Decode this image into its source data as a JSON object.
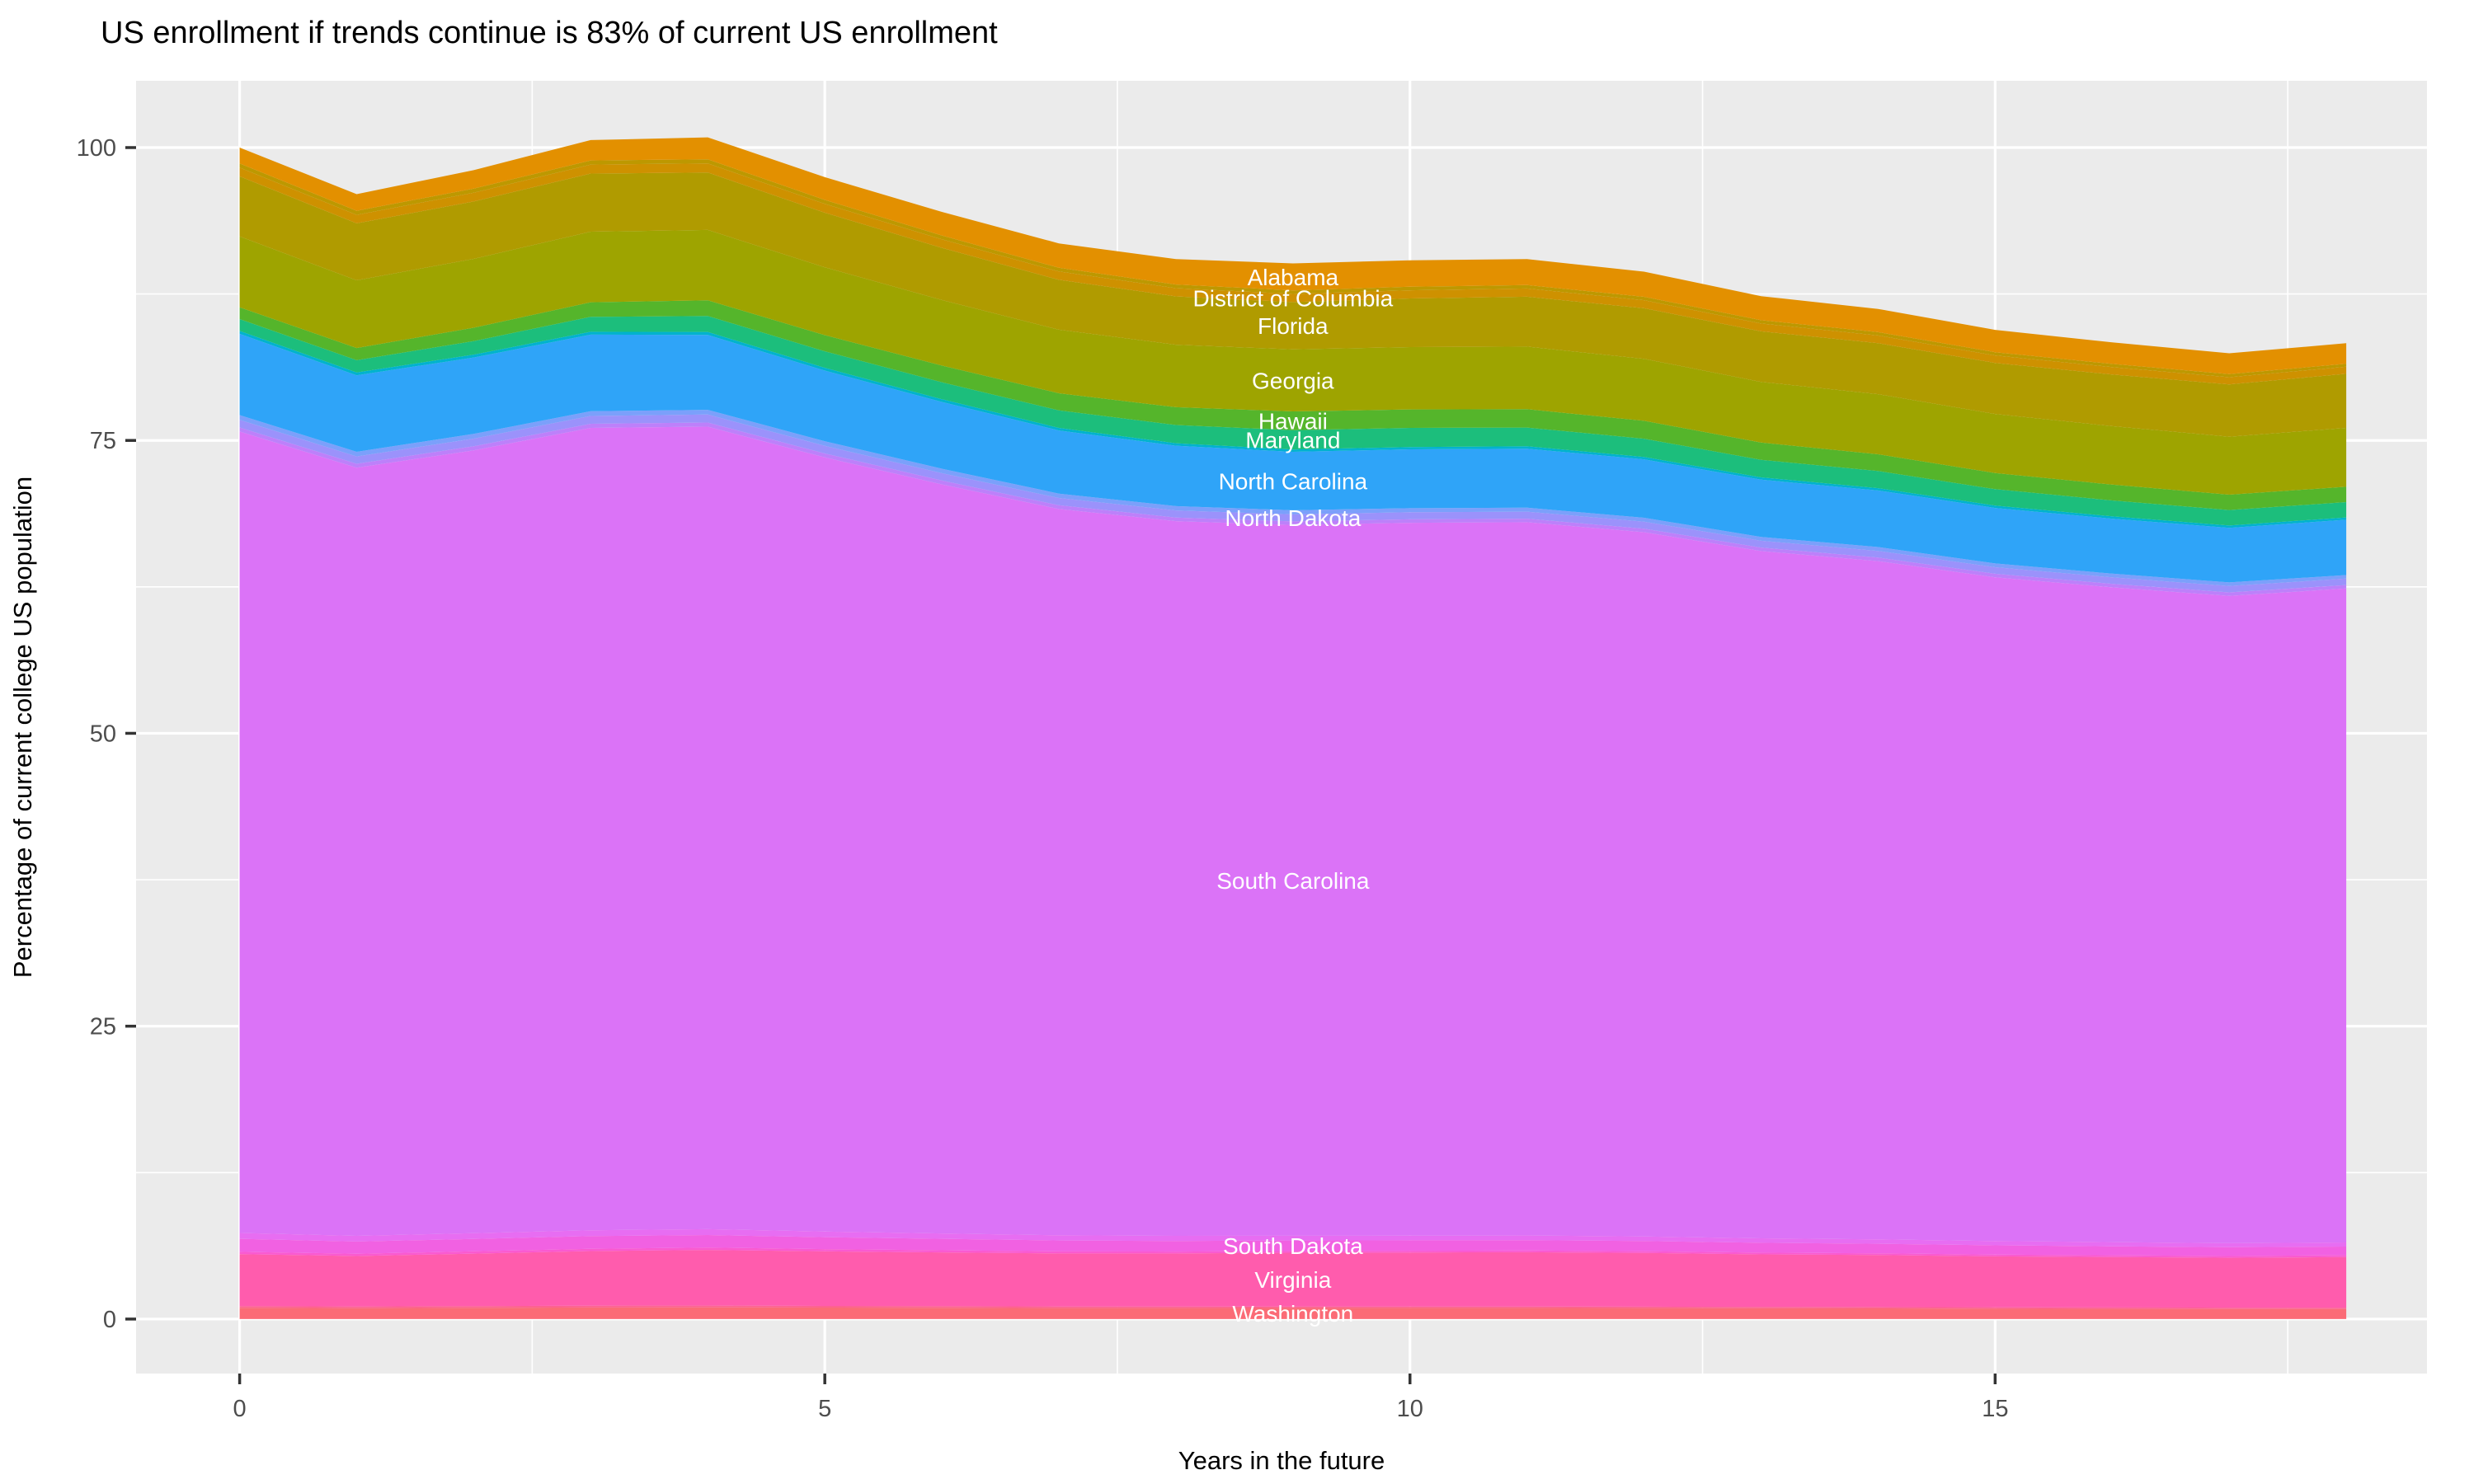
{
  "chart_data": {
    "type": "area",
    "stacked": true,
    "title": "US enrollment if trends continue is 83% of current US enrollment",
    "xlabel": "Years in the future",
    "ylabel": "Percentage of current college US population",
    "legend": "none",
    "grid": "on",
    "label_x": 9,
    "x": [
      0,
      1,
      2,
      3,
      4,
      5,
      6,
      7,
      8,
      9,
      10,
      11,
      12,
      13,
      14,
      15,
      16,
      17,
      18
    ],
    "x_ticks": [
      0,
      5,
      10,
      15
    ],
    "y_ticks": [
      0,
      25,
      50,
      75,
      100
    ],
    "x_minor_ticks": [
      2.5,
      7.5,
      12.5,
      17.5
    ],
    "y_minor_ticks": [
      12.5,
      37.5,
      62.5,
      87.5
    ],
    "x_range": [
      -0.885,
      18.69
    ],
    "y_range": [
      -4.65,
      105.7
    ],
    "total_at_end_pct": 83,
    "series": [
      {
        "name": "washington",
        "label": "Washington",
        "color": "#FB6B76",
        "values": [
          0.96,
          0.93,
          0.96,
          0.99,
          1.0,
          0.98,
          0.96,
          0.94,
          0.94,
          0.95,
          0.95,
          0.95,
          0.94,
          0.92,
          0.91,
          0.88,
          0.87,
          0.85,
          0.85
        ]
      },
      {
        "name": "filler-1",
        "label": "",
        "color": "#FD6290",
        "values": [
          0.15,
          0.14,
          0.15,
          0.15,
          0.15,
          0.14,
          0.14,
          0.13,
          0.13,
          0.12,
          0.12,
          0.12,
          0.12,
          0.12,
          0.12,
          0.12,
          0.12,
          0.12,
          0.12
        ]
      },
      {
        "name": "virginia",
        "label": "Virginia",
        "color": "#FF5CAD",
        "values": [
          4.43,
          4.31,
          4.47,
          4.66,
          4.75,
          4.66,
          4.59,
          4.53,
          4.53,
          4.59,
          4.61,
          4.63,
          4.58,
          4.48,
          4.43,
          4.35,
          4.3,
          4.26,
          4.32
        ]
      },
      {
        "name": "filler-2",
        "label": "",
        "color": "#FA5AD0",
        "values": [
          0.2,
          0.19,
          0.2,
          0.2,
          0.2,
          0.19,
          0.18,
          0.17,
          0.16,
          0.15,
          0.15,
          0.15,
          0.15,
          0.15,
          0.15,
          0.15,
          0.15,
          0.15,
          0.15
        ]
      },
      {
        "name": "south-dakota",
        "label": "South Dakota",
        "color": "#F161E2",
        "values": [
          1.11,
          1.05,
          1.06,
          1.08,
          1.07,
          1.02,
          0.98,
          0.94,
          0.91,
          0.9,
          0.89,
          0.88,
          0.87,
          0.84,
          0.82,
          0.79,
          0.77,
          0.75,
          0.75
        ]
      },
      {
        "name": "filler-3",
        "label": "",
        "color": "#E76DF2",
        "values": [
          0.5,
          0.48,
          0.49,
          0.5,
          0.5,
          0.48,
          0.46,
          0.44,
          0.43,
          0.4,
          0.4,
          0.4,
          0.39,
          0.38,
          0.38,
          0.37,
          0.36,
          0.35,
          0.35
        ]
      },
      {
        "name": "south-carolina",
        "label": "South Carolina",
        "color": "#DB73F7",
        "values": [
          68.41,
          65.57,
          66.83,
          68.49,
          68.51,
          66.08,
          63.94,
          62.0,
          61.01,
          60.68,
          60.85,
          60.89,
          60.12,
          58.67,
          57.89,
          56.66,
          55.89,
          55.25,
          55.82
        ]
      },
      {
        "name": "filler-4",
        "label": "",
        "color": "#BD80FA",
        "values": [
          0.35,
          0.34,
          0.35,
          0.35,
          0.35,
          0.34,
          0.33,
          0.32,
          0.31,
          0.3,
          0.3,
          0.3,
          0.3,
          0.3,
          0.3,
          0.3,
          0.3,
          0.3,
          0.3
        ]
      },
      {
        "name": "north-dakota",
        "label": "North Dakota",
        "color": "#9B92FB",
        "values": [
          0.65,
          0.63,
          0.65,
          0.67,
          0.68,
          0.65,
          0.63,
          0.62,
          0.61,
          0.6,
          0.6,
          0.6,
          0.59,
          0.58,
          0.57,
          0.56,
          0.55,
          0.54,
          0.55
        ]
      },
      {
        "name": "filler-5",
        "label": "",
        "color": "#7BA0FB",
        "values": [
          0.4,
          0.39,
          0.4,
          0.4,
          0.4,
          0.39,
          0.38,
          0.37,
          0.36,
          0.35,
          0.35,
          0.34,
          0.34,
          0.33,
          0.33,
          0.32,
          0.32,
          0.31,
          0.3
        ]
      },
      {
        "name": "north-carolina",
        "label": "North Carolina",
        "color": "#2FA4F8",
        "values": [
          6.94,
          6.53,
          6.52,
          6.54,
          6.4,
          6.03,
          5.7,
          5.39,
          5.16,
          4.99,
          5.02,
          5.04,
          4.99,
          4.88,
          4.83,
          4.74,
          4.69,
          4.66,
          4.72
        ]
      },
      {
        "name": "filler-6",
        "label": "",
        "color": "#00B2CE",
        "values": [
          0.25,
          0.24,
          0.25,
          0.25,
          0.25,
          0.24,
          0.23,
          0.22,
          0.21,
          0.2,
          0.2,
          0.2,
          0.2,
          0.2,
          0.2,
          0.2,
          0.2,
          0.2,
          0.2
        ]
      },
      {
        "name": "maryland",
        "label": "Maryland",
        "color": "#1CBE7C",
        "values": [
          1.01,
          1.05,
          1.15,
          1.27,
          1.36,
          1.41,
          1.45,
          1.5,
          1.56,
          1.65,
          1.63,
          1.6,
          1.56,
          1.5,
          1.46,
          1.4,
          1.36,
          1.32,
          1.31
        ]
      },
      {
        "name": "hawaii",
        "label": "Hawaii",
        "color": "#55B52B",
        "values": [
          1.01,
          1.04,
          1.14,
          1.25,
          1.34,
          1.38,
          1.42,
          1.46,
          1.52,
          1.6,
          1.58,
          1.57,
          1.53,
          1.47,
          1.43,
          1.38,
          1.35,
          1.31,
          1.31
        ]
      },
      {
        "name": "georgia",
        "label": "Georgia",
        "color": "#9EA400",
        "values": [
          6.04,
          5.78,
          5.88,
          6.02,
          6.01,
          5.79,
          5.6,
          5.42,
          5.33,
          5.29,
          5.32,
          5.34,
          5.29,
          5.18,
          5.13,
          5.04,
          4.99,
          4.95,
          5.02
        ]
      },
      {
        "name": "florida",
        "label": "Florida",
        "color": "#B09B00",
        "values": [
          5.13,
          4.86,
          4.9,
          4.96,
          4.9,
          4.66,
          4.45,
          4.26,
          4.13,
          4.04,
          4.15,
          4.26,
          4.31,
          4.31,
          4.35,
          4.36,
          4.41,
          4.46,
          4.62
        ]
      },
      {
        "name": "district-of-columbia",
        "label": "District of Columbia",
        "color": "#CE9100",
        "values": [
          0.75,
          0.73,
          0.75,
          0.77,
          0.78,
          0.75,
          0.73,
          0.71,
          0.7,
          0.7,
          0.7,
          0.7,
          0.69,
          0.67,
          0.66,
          0.64,
          0.63,
          0.62,
          0.6
        ]
      },
      {
        "name": "filler-7",
        "label": "",
        "color": "#BD9800",
        "values": [
          0.35,
          0.34,
          0.35,
          0.35,
          0.35,
          0.34,
          0.33,
          0.32,
          0.31,
          0.3,
          0.3,
          0.29,
          0.29,
          0.28,
          0.28,
          0.27,
          0.27,
          0.26,
          0.25
        ]
      },
      {
        "name": "alabama",
        "label": "Alabama",
        "color": "#E39000",
        "values": [
          1.36,
          1.42,
          1.57,
          1.74,
          1.87,
          1.94,
          2.01,
          2.08,
          2.17,
          2.3,
          2.26,
          2.22,
          2.15,
          2.06,
          1.99,
          1.91,
          1.84,
          1.78,
          1.76
        ]
      }
    ]
  },
  "style": {
    "background": "#FFFFFF",
    "panel_background": "#EBEBEB",
    "grid_color": "#FFFFFF",
    "tick_mark_color": "#333333",
    "tick_text_color": "#4D4D4D",
    "title_color": "#000000",
    "axis_title_color": "#000000",
    "area_label_color": "#FFFFFF"
  }
}
